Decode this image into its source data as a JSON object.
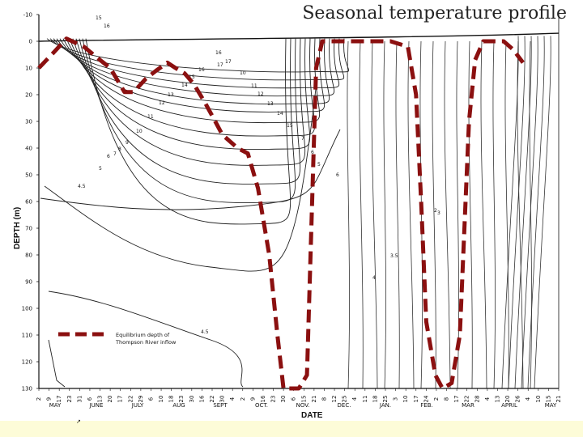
{
  "slide": {
    "title": "Seasonal temperature profile"
  },
  "chart_data": {
    "type": "line",
    "title": "Seasonal temperature profile",
    "xlabel": "DATE",
    "ylabel": "DEPTH (m)",
    "ylim": [
      -10,
      130
    ],
    "y_ticks": [
      "-10",
      "0",
      "10",
      "20",
      "30",
      "40",
      "50",
      "60",
      "70",
      "80",
      "90",
      "100",
      "110",
      "120",
      "130"
    ],
    "date_ticks": [
      "2",
      "9",
      "17",
      "23",
      "31",
      "6",
      "13",
      "20",
      "17",
      "22",
      "29",
      "6",
      "10",
      "18",
      "23",
      "30",
      "16",
      "22",
      "30",
      "4",
      "2",
      "9",
      "16",
      "23",
      "30",
      "6",
      "15",
      "21",
      "8",
      "12",
      "25",
      "4",
      "11",
      "18",
      "25",
      "3",
      "10",
      "17",
      "24",
      "2",
      "8",
      "17",
      "22",
      "28",
      "4",
      "13",
      "20",
      "26",
      "4",
      "10",
      "15",
      "21"
    ],
    "months": [
      "MAY",
      "JUNE",
      "JULY",
      "AUG",
      "SEPT",
      "OCT.",
      "NOV.",
      "DEC.",
      "JAN.",
      "FEB.",
      "MAR",
      "APRIL",
      "MAY"
    ],
    "contour_labels": [
      "15",
      "16",
      "17",
      "16",
      "15",
      "14",
      "13",
      "12",
      "11",
      "10",
      "9",
      "8",
      "7",
      "6",
      "5",
      "4.5",
      "4",
      "3.5",
      "3",
      "2",
      "6",
      "16",
      "17",
      "10",
      "11",
      "12",
      "13",
      "14",
      "15",
      "7",
      "6",
      "5",
      "4.5"
    ],
    "legend": {
      "label": "Equilibrium depth of Thompson River inflow"
    },
    "series": [
      {
        "name": "Equilibrium depth of Thompson River inflow",
        "style": "dashed",
        "color": "#8b1010",
        "points": [
          [
            0,
            10
          ],
          [
            1.5,
            4
          ],
          [
            2.7,
            -1
          ],
          [
            4.4,
            2
          ],
          [
            6.0,
            7
          ],
          [
            7.0,
            10
          ],
          [
            8.4,
            19
          ],
          [
            9.3,
            19
          ],
          [
            10.5,
            14
          ],
          [
            11.5,
            11
          ],
          [
            12.6,
            8
          ],
          [
            13.4,
            10
          ],
          [
            14.3,
            12
          ],
          [
            15.2,
            16
          ],
          [
            16.3,
            23
          ],
          [
            17.3,
            30
          ],
          [
            18.0,
            35
          ],
          [
            19.5,
            40
          ],
          [
            20.5,
            42
          ],
          [
            21.5,
            55
          ],
          [
            22.6,
            80
          ],
          [
            23.4,
            110
          ],
          [
            24.0,
            130
          ],
          [
            25.5,
            130
          ],
          [
            26.3,
            125
          ],
          [
            27.2,
            10
          ],
          [
            27.8,
            0
          ],
          [
            28.8,
            0
          ],
          [
            34.5,
            0
          ],
          [
            36.2,
            2
          ],
          [
            37.0,
            20
          ],
          [
            37.5,
            60
          ],
          [
            38.0,
            105
          ],
          [
            38.9,
            125
          ],
          [
            39.6,
            130
          ],
          [
            40.5,
            128
          ],
          [
            41.3,
            110
          ],
          [
            42.2,
            30
          ],
          [
            42.8,
            7
          ],
          [
            43.6,
            0
          ],
          [
            45.6,
            0
          ],
          [
            46.5,
            3
          ],
          [
            47.5,
            8
          ]
        ]
      }
    ],
    "annotations": [
      "Equilibrium depth of",
      "Thompson River inflow"
    ]
  }
}
